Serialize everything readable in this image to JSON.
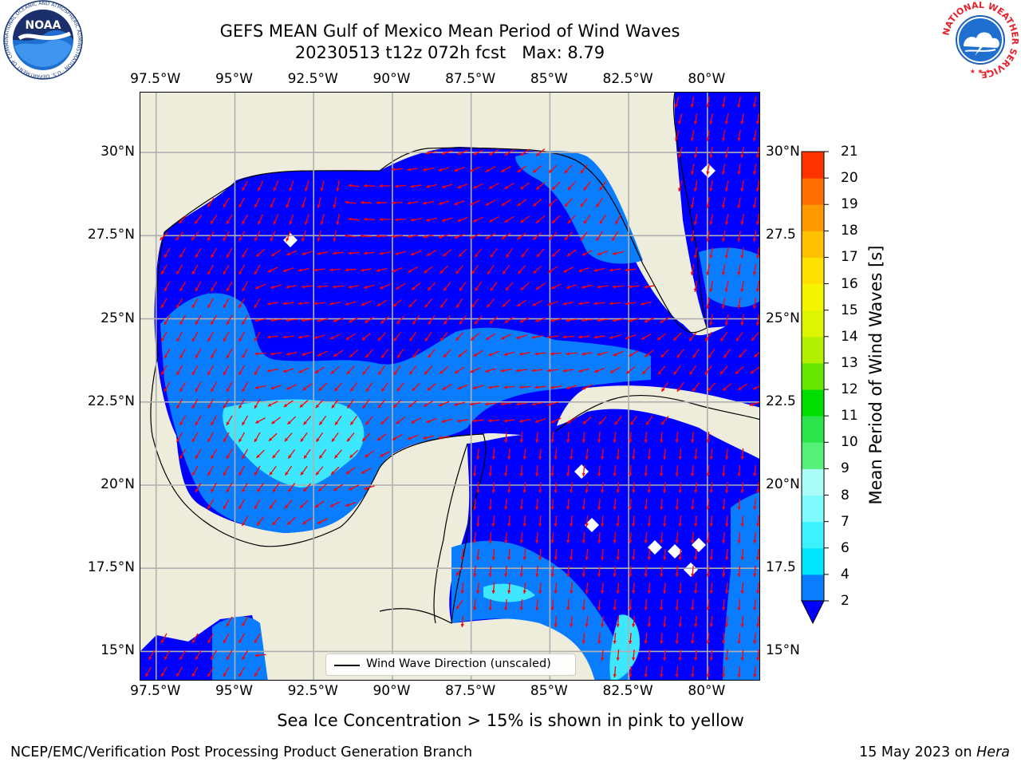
{
  "title": {
    "line1": "GEFS MEAN Gulf of Mexico Mean Period of Wind Waves",
    "line2": "20230513 t12z 072h fcst   Max: 8.79"
  },
  "map": {
    "lon_ticks": [
      "97.5°W",
      "95°W",
      "92.5°W",
      "90°W",
      "87.5°W",
      "85°W",
      "82.5°W",
      "80°W"
    ],
    "lat_ticks": [
      "30°N",
      "27.5°N",
      "25°N",
      "22.5°N",
      "20°N",
      "17.5°N",
      "15°N"
    ],
    "lat_ticks_right": [
      "30°N",
      "27.5",
      "25°N",
      "22.5",
      "20°N",
      "17.5",
      "15°N"
    ],
    "land_color": "#eeeddc",
    "ocean_primary_color": "#0000ff",
    "ocean_secondary_color": "#0a7dff",
    "ocean_tertiary_color": "#3de8ff",
    "arrow_color": "#ff0000",
    "gridline_color": "#b0b0b0",
    "lon_range": [
      -98.0,
      -78.3
    ],
    "lat_range": [
      14.1,
      31.8
    ]
  },
  "legend": {
    "label": "Wind Wave Direction (unscaled)"
  },
  "colorbar": {
    "title": "Mean Period of Wind Waves [s]",
    "levels": [
      "2",
      "4",
      "6",
      "7",
      "8",
      "9",
      "10",
      "11",
      "12",
      "13",
      "14",
      "15",
      "16",
      "17",
      "18",
      "19",
      "20",
      "21"
    ],
    "colors": [
      "#0a7dff",
      "#00e5ff",
      "#3cf2ff",
      "#7ffaff",
      "#aafdf7",
      "#55ef7a",
      "#2ee54e",
      "#00dd00",
      "#66e600",
      "#b3ef00",
      "#ddf500",
      "#f5f500",
      "#ffe000",
      "#ffc000",
      "#ff9900",
      "#ff7000",
      "#ff3300",
      "#ff0000"
    ],
    "extend_color": "#0000ff"
  },
  "ice_note": "Sea Ice Concentration > 15% is shown in pink to yellow",
  "footer": {
    "left": "NCEP/EMC/Verification Post Processing Product Generation Branch",
    "right_date": "15 May 2023 on",
    "right_host": "Hera"
  },
  "logos": {
    "noaa_text": "NOAA",
    "noaa_ring_text": "NATIONAL OCEANIC AND ATMOSPHERIC ADMINISTRATION · U.S. DEPARTMENT OF COMMERCE",
    "nws_ring_text": "NATIONAL WEATHER SERVICE"
  }
}
